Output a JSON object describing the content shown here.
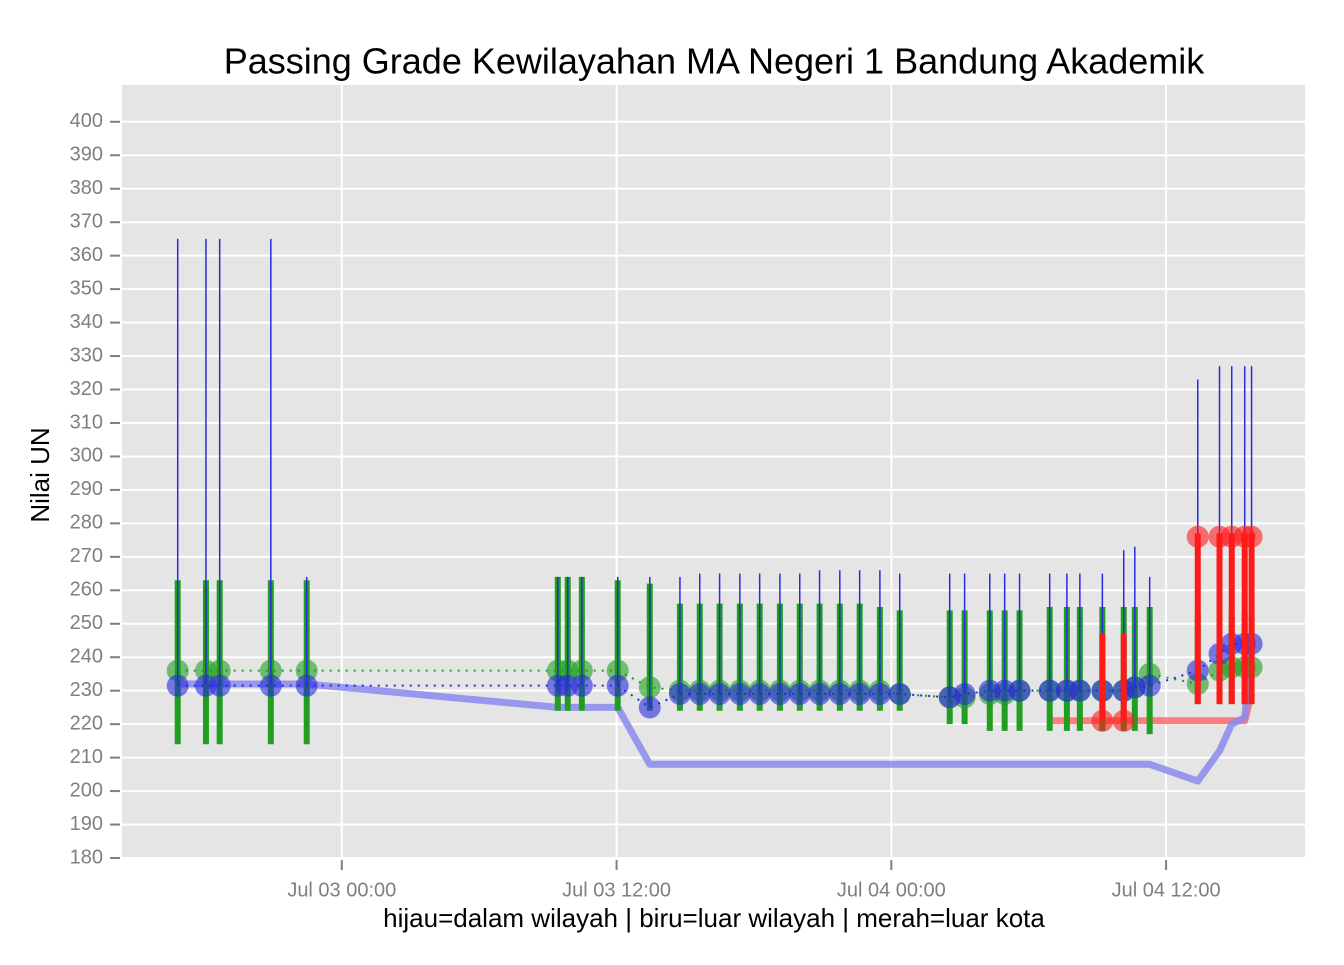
{
  "chart_data": {
    "type": "timeline-range",
    "title": "Passing Grade Kewilayahan MA Negeri 1 Bandung Akademik",
    "ylabel": "Nilai UN",
    "xlabel": "hijau=dalam wilayah | biru=luar wilayah | merah=luar kota",
    "ylim": [
      180,
      411
    ],
    "yticks": [
      180,
      190,
      200,
      210,
      220,
      230,
      240,
      250,
      260,
      270,
      280,
      290,
      300,
      310,
      320,
      330,
      340,
      350,
      360,
      370,
      380,
      390,
      400
    ],
    "xlim": [
      "Jul 02 14:24",
      "Jul 04 18:04"
    ],
    "xticks": [
      "Jul 03 00:00",
      "Jul 03 12:00",
      "Jul 04 00:00",
      "Jul 04 12:00"
    ],
    "grid": true,
    "x": [
      "Jul 02 16:50",
      "Jul 02 18:04",
      "Jul 02 18:40",
      "Jul 02 20:54",
      "Jul 02 22:28",
      "Jul 03 09:26",
      "Jul 03 09:52",
      "Jul 03 10:29",
      "Jul 03 12:03",
      "Jul 03 13:27",
      "Jul 03 14:46",
      "Jul 03 15:38",
      "Jul 03 16:30",
      "Jul 03 17:23",
      "Jul 03 18:15",
      "Jul 03 19:08",
      "Jul 03 20:00",
      "Jul 03 20:52",
      "Jul 03 21:45",
      "Jul 03 22:37",
      "Jul 03 23:30",
      "Jul 04 00:22",
      "Jul 04 02:33",
      "Jul 04 03:12",
      "Jul 04 04:18",
      "Jul 04 04:57",
      "Jul 04 05:36",
      "Jul 04 06:55",
      "Jul 04 07:40",
      "Jul 04 08:14",
      "Jul 04 09:13",
      "Jul 04 10:09",
      "Jul 04 10:38",
      "Jul 04 11:17",
      "Jul 04 13:23",
      "Jul 04 14:20",
      "Jul 04 14:52",
      "Jul 04 15:26",
      "Jul 04 15:44"
    ],
    "series": [
      {
        "style": "lines",
        "color": "#ff6b6b",
        "values": [
          null,
          null,
          null,
          null,
          null,
          null,
          null,
          null,
          null,
          null,
          null,
          null,
          null,
          null,
          null,
          null,
          null,
          null,
          null,
          null,
          null,
          null,
          null,
          null,
          null,
          null,
          null,
          221,
          221,
          221,
          221,
          221,
          221,
          221,
          221,
          221,
          221,
          221,
          229
        ]
      },
      {
        "style": "lines",
        "color": "#8a8aee",
        "values": [
          232,
          232,
          232,
          232,
          232,
          225,
          225,
          225,
          225,
          208,
          208,
          208,
          208,
          208,
          208,
          208,
          208,
          208,
          208,
          208,
          208,
          208,
          208,
          208,
          208,
          208,
          208,
          208,
          208,
          208,
          208,
          208,
          208,
          208,
          203,
          212,
          220,
          222,
          243
        ]
      },
      {
        "style": "points",
        "color": "#1f9e1f",
        "dotted": true,
        "bar_width": 6,
        "values": [
          236,
          236,
          236,
          236,
          236,
          236,
          236,
          236,
          236,
          231,
          230,
          230,
          230,
          230,
          230,
          230,
          230,
          230,
          230,
          230,
          230,
          229,
          228,
          228,
          229,
          229,
          230,
          230,
          230,
          230,
          230,
          230,
          231,
          235,
          232,
          236,
          237,
          237,
          237
        ],
        "low": [
          214,
          214,
          214,
          214,
          214,
          224,
          224,
          224,
          224,
          224,
          224,
          224,
          224,
          224,
          224,
          224,
          224,
          224,
          224,
          224,
          224,
          224,
          220,
          220,
          218,
          218,
          218,
          218,
          218,
          218,
          218,
          218,
          218,
          217,
          226,
          226,
          226,
          226,
          226
        ],
        "high": [
          263,
          263,
          263,
          263,
          263,
          264,
          264,
          264,
          263,
          262,
          256,
          256,
          256,
          256,
          256,
          256,
          256,
          256,
          256,
          256,
          255,
          254,
          254,
          254,
          254,
          254,
          254,
          255,
          255,
          255,
          255,
          255,
          255,
          255,
          253,
          253,
          253,
          253,
          253
        ]
      },
      {
        "style": "points",
        "color": "#2a2ae0",
        "dotted": true,
        "bar_width": 1.5,
        "values": [
          231.5,
          231.5,
          231.5,
          231.5,
          231.5,
          231.5,
          231.5,
          231.5,
          231.5,
          225,
          229,
          229,
          229,
          229,
          229,
          229,
          229,
          229,
          229,
          229,
          229,
          229,
          228,
          229,
          230,
          230,
          230,
          230,
          230,
          230,
          230,
          230,
          231,
          231.5,
          236,
          241,
          244,
          244,
          244
        ],
        "low": [
          231.5,
          231.5,
          231.5,
          231.5,
          231.5,
          231.5,
          231.5,
          231.5,
          231.5,
          225,
          229,
          229,
          229,
          229,
          229,
          229,
          229,
          229,
          229,
          229,
          229,
          229,
          228,
          229,
          230,
          230,
          230,
          230,
          230,
          230,
          230,
          230,
          231,
          231.5,
          236,
          241,
          244,
          244,
          244
        ],
        "high": [
          365,
          365,
          365,
          365,
          264,
          264,
          264,
          264,
          264,
          264,
          264,
          265,
          265,
          265,
          265,
          265,
          265,
          266,
          266,
          266,
          266,
          265,
          265,
          265,
          265,
          265,
          265,
          265,
          265,
          265,
          265,
          272,
          273,
          264,
          323,
          327,
          327,
          327,
          327
        ]
      },
      {
        "style": "points",
        "color": "#ff1a1a",
        "dotted": false,
        "bar_width": 6,
        "values": [
          null,
          null,
          null,
          null,
          null,
          null,
          null,
          null,
          null,
          null,
          null,
          null,
          null,
          null,
          null,
          null,
          null,
          null,
          null,
          null,
          null,
          null,
          null,
          null,
          null,
          null,
          null,
          null,
          null,
          null,
          221,
          221,
          null,
          null,
          276,
          276,
          276,
          276,
          276
        ],
        "low": [
          null,
          null,
          null,
          null,
          null,
          null,
          null,
          null,
          null,
          null,
          null,
          null,
          null,
          null,
          null,
          null,
          null,
          null,
          null,
          null,
          null,
          null,
          null,
          null,
          null,
          null,
          null,
          null,
          null,
          null,
          221,
          221,
          null,
          null,
          226,
          226,
          226,
          226,
          226
        ],
        "high": [
          null,
          null,
          null,
          null,
          null,
          null,
          null,
          null,
          null,
          null,
          null,
          null,
          null,
          null,
          null,
          null,
          null,
          null,
          null,
          null,
          null,
          null,
          null,
          null,
          null,
          null,
          null,
          null,
          null,
          null,
          247,
          247,
          null,
          null,
          277,
          277,
          277,
          277,
          277
        ]
      }
    ]
  }
}
